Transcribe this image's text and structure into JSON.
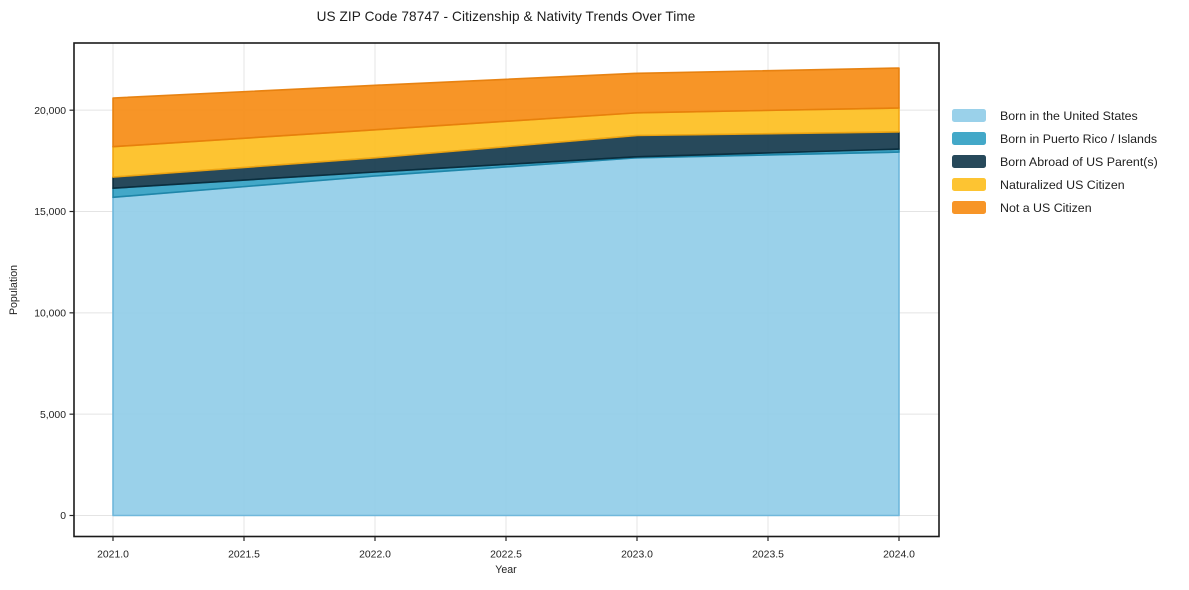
{
  "chart_data": {
    "type": "area",
    "stacked": true,
    "title": "US ZIP Code 78747 - Citizenship & Nativity Trends Over Time",
    "xlabel": "Year",
    "ylabel": "Population",
    "x": [
      2021,
      2022,
      2023,
      2024
    ],
    "x_tick_values": [
      2021.0,
      2021.5,
      2022.0,
      2022.5,
      2023.0,
      2023.5,
      2024.0
    ],
    "x_tick_labels": [
      "2021.0",
      "2021.5",
      "2022.0",
      "2022.5",
      "2023.0",
      "2023.5",
      "2024.0"
    ],
    "y_tick_values": [
      0,
      5000,
      10000,
      15000,
      20000
    ],
    "y_tick_labels": [
      "0",
      "5,000",
      "10,000",
      "15,000",
      "20,000"
    ],
    "xlim": [
      2020.84,
      2024.15
    ],
    "ylim": [
      -850,
      23300
    ],
    "grid": true,
    "legend_position": "right",
    "series": [
      {
        "name": "Born in the United States",
        "color": "#8FCCE8",
        "edge": "#6CB5DA",
        "values": [
          15700,
          16750,
          17650,
          17930
        ]
      },
      {
        "name": "Born in Puerto Rico / Islands",
        "color": "#2F9FC2",
        "edge": "#1C84A6",
        "values": [
          450,
          200,
          50,
          150
        ]
      },
      {
        "name": "Born Abroad of US Parent(s)",
        "color": "#0F3549",
        "edge": "#0B2C3C",
        "values": [
          550,
          700,
          1050,
          850
        ]
      },
      {
        "name": "Naturalized US Citizen",
        "color": "#FDBE1C",
        "edge": "#F0A512",
        "values": [
          1500,
          1380,
          1120,
          1180
        ]
      },
      {
        "name": "Not a US Citizen",
        "color": "#F68A0F",
        "edge": "#E67E0C",
        "values": [
          2400,
          2200,
          1950,
          1970
        ]
      }
    ],
    "totals_by_year": [
      20600,
      21230,
      21820,
      22080
    ],
    "style": {
      "grid_color": "#e4e4e4",
      "spine_color": "#1a1a1a",
      "tick_color": "#262626",
      "text_color": "#1f1f1f",
      "fill_opacity": 0.9
    }
  }
}
